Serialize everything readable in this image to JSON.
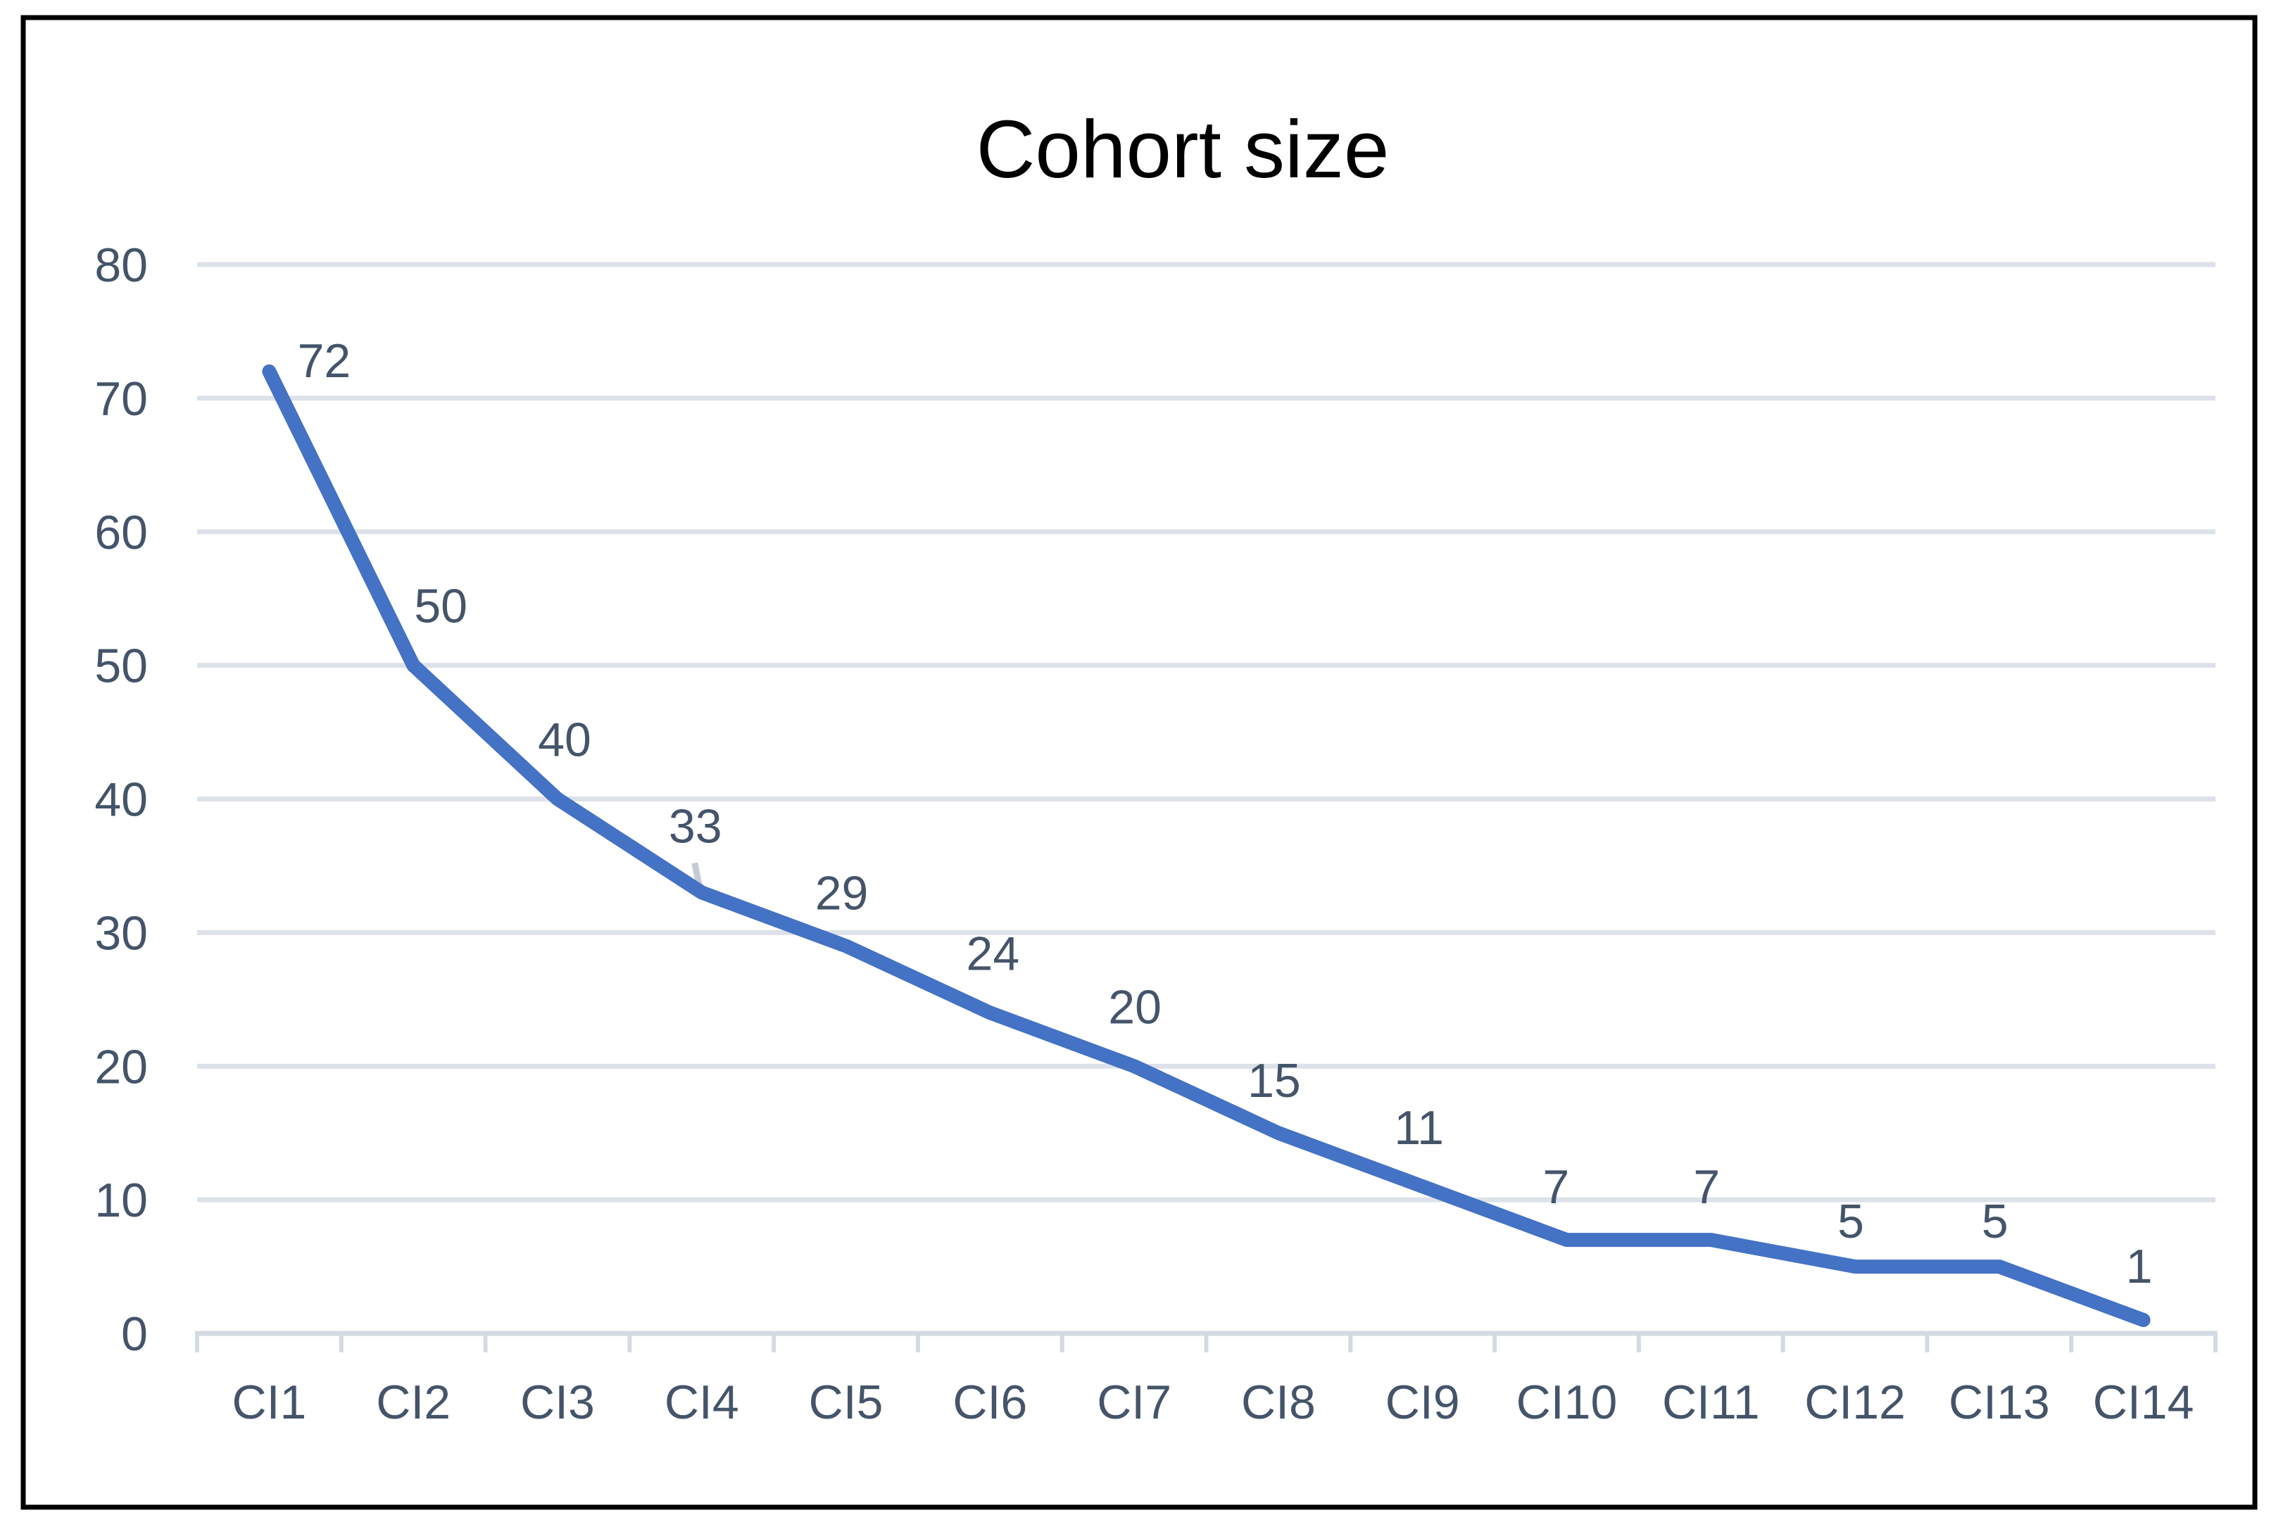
{
  "chart_data": {
    "type": "line",
    "title": "Cohort size",
    "categories": [
      "CI1",
      "CI2",
      "CI3",
      "CI4",
      "CI5",
      "CI6",
      "CI7",
      "CI8",
      "CI9",
      "CI10",
      "CI11",
      "CI12",
      "CI13",
      "CI14"
    ],
    "series": [
      {
        "name": "Cohort size",
        "values": [
          72,
          50,
          40,
          33,
          29,
          24,
          20,
          15,
          11,
          7,
          7,
          5,
          5,
          1
        ]
      }
    ],
    "data_labels_shown": true,
    "xlabel": "",
    "ylabel": "",
    "ylim": [
      0,
      80
    ],
    "yticks": [
      0,
      10,
      20,
      30,
      40,
      50,
      60,
      70,
      80
    ],
    "grid": "horizontal",
    "legend": "none",
    "leader_line_at_category": "CI4",
    "colors": {
      "line": "#4472C4",
      "data_label": "#44546A",
      "axis_label": "#44546A",
      "gridline": "#DDE1E9",
      "axis_line": "#D4DAE3",
      "tick": "#D4DAE3",
      "leader_line": "#C6CBD4",
      "title": "#000000",
      "frame_border": "#000000",
      "background": "#FFFFFF"
    }
  }
}
